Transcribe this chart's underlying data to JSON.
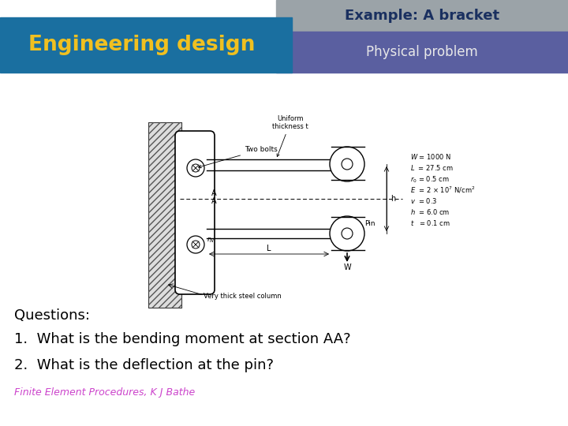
{
  "title_text": "Example: A bracket",
  "title_bg_color": "#9BA3A8",
  "title_text_color": "#1a3060",
  "eng_design_text": "Engineering design",
  "eng_design_bg_color": "#1a6fa0",
  "eng_design_text_color": "#f0c020",
  "phys_problem_text": "Physical problem",
  "phys_problem_bg_color": "#5a5fa0",
  "phys_problem_text_color": "#e8e8e8",
  "questions_label": "Questions:",
  "question1": "1.  What is the bending moment at section AA?",
  "question2": "2.  What is the deflection at the pin?",
  "footer": "Finite Element Procedures, K J Bathe",
  "footer_color": "#cc44cc",
  "bg_color": "#ffffff",
  "text_color": "#000000"
}
